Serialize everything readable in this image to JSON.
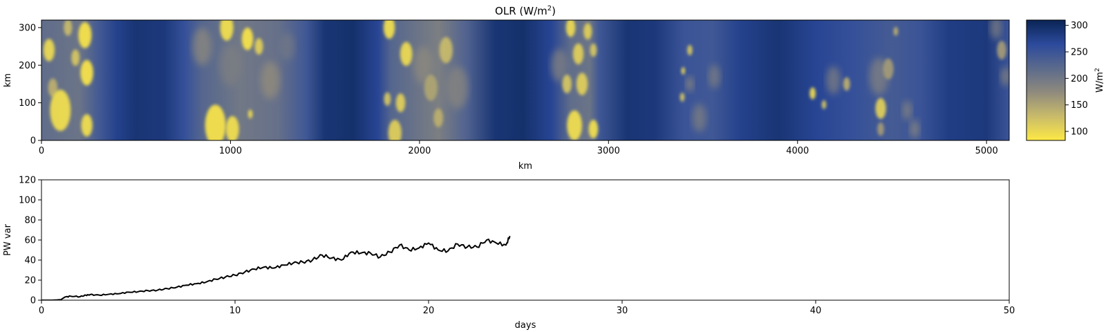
{
  "chart_data": [
    {
      "type": "heatmap",
      "title": "OLR (W/m",
      "title_sup": "2",
      "title_end": ")",
      "xlabel": "km",
      "ylabel": "km",
      "xlim": [
        0,
        5120
      ],
      "ylim": [
        0,
        320
      ],
      "xticks": [
        0,
        1000,
        2000,
        3000,
        4000,
        5000
      ],
      "yticks": [
        0,
        100,
        200,
        300
      ],
      "colorbar": {
        "label": "W/m",
        "label_sup": "2",
        "range": [
          83,
          310
        ],
        "ticks": [
          100,
          150,
          200,
          250,
          300
        ],
        "colors": [
          "#fde945",
          "#c9bb6a",
          "#8f8a7d",
          "#5b6a8c",
          "#2c4a9c",
          "#0a2455"
        ]
      },
      "base_field": [
        {
          "x": 0,
          "v": 215
        },
        {
          "x": 200,
          "v": 205
        },
        {
          "x": 300,
          "v": 240
        },
        {
          "x": 400,
          "v": 275
        },
        {
          "x": 500,
          "v": 290
        },
        {
          "x": 650,
          "v": 285
        },
        {
          "x": 760,
          "v": 255
        },
        {
          "x": 850,
          "v": 225
        },
        {
          "x": 1050,
          "v": 200
        },
        {
          "x": 1250,
          "v": 210
        },
        {
          "x": 1400,
          "v": 245
        },
        {
          "x": 1500,
          "v": 290
        },
        {
          "x": 1650,
          "v": 295
        },
        {
          "x": 1780,
          "v": 270
        },
        {
          "x": 1850,
          "v": 225
        },
        {
          "x": 2100,
          "v": 190
        },
        {
          "x": 2250,
          "v": 230
        },
        {
          "x": 2400,
          "v": 290
        },
        {
          "x": 2550,
          "v": 295
        },
        {
          "x": 2700,
          "v": 270
        },
        {
          "x": 2800,
          "v": 215
        },
        {
          "x": 2900,
          "v": 205
        },
        {
          "x": 2950,
          "v": 245
        },
        {
          "x": 3100,
          "v": 290
        },
        {
          "x": 3250,
          "v": 285
        },
        {
          "x": 3400,
          "v": 250
        },
        {
          "x": 3550,
          "v": 245
        },
        {
          "x": 3700,
          "v": 275
        },
        {
          "x": 3900,
          "v": 290
        },
        {
          "x": 4100,
          "v": 270
        },
        {
          "x": 4300,
          "v": 255
        },
        {
          "x": 4500,
          "v": 240
        },
        {
          "x": 4650,
          "v": 250
        },
        {
          "x": 4800,
          "v": 280
        },
        {
          "x": 5000,
          "v": 285
        },
        {
          "x": 5120,
          "v": 250
        }
      ],
      "cells": [
        {
          "x": 230,
          "y": 280,
          "r": 35,
          "v": 90
        },
        {
          "x": 240,
          "y": 180,
          "r": 34,
          "v": 90
        },
        {
          "x": 40,
          "y": 240,
          "r": 30,
          "v": 100
        },
        {
          "x": 100,
          "y": 80,
          "r": 55,
          "v": 95
        },
        {
          "x": 240,
          "y": 40,
          "r": 30,
          "v": 95
        },
        {
          "x": 180,
          "y": 220,
          "r": 22,
          "v": 120
        },
        {
          "x": 60,
          "y": 140,
          "r": 25,
          "v": 140
        },
        {
          "x": 140,
          "y": 300,
          "r": 22,
          "v": 130
        },
        {
          "x": 980,
          "y": 300,
          "r": 35,
          "v": 95
        },
        {
          "x": 920,
          "y": 40,
          "r": 55,
          "v": 90
        },
        {
          "x": 1010,
          "y": 30,
          "r": 35,
          "v": 95
        },
        {
          "x": 1090,
          "y": 270,
          "r": 30,
          "v": 90
        },
        {
          "x": 1150,
          "y": 250,
          "r": 22,
          "v": 110
        },
        {
          "x": 1105,
          "y": 70,
          "r": 12,
          "v": 100
        },
        {
          "x": 1210,
          "y": 160,
          "r": 40,
          "v": 170
        },
        {
          "x": 1000,
          "y": 200,
          "r": 45,
          "v": 190
        },
        {
          "x": 850,
          "y": 250,
          "r": 40,
          "v": 175
        },
        {
          "x": 1300,
          "y": 250,
          "r": 30,
          "v": 200
        },
        {
          "x": 1840,
          "y": 300,
          "r": 30,
          "v": 95
        },
        {
          "x": 1930,
          "y": 230,
          "r": 32,
          "v": 100
        },
        {
          "x": 1900,
          "y": 100,
          "r": 25,
          "v": 110
        },
        {
          "x": 1830,
          "y": 110,
          "r": 18,
          "v": 120
        },
        {
          "x": 1870,
          "y": 20,
          "r": 35,
          "v": 110
        },
        {
          "x": 2140,
          "y": 240,
          "r": 35,
          "v": 130
        },
        {
          "x": 2060,
          "y": 140,
          "r": 35,
          "v": 150
        },
        {
          "x": 2100,
          "y": 60,
          "r": 25,
          "v": 140
        },
        {
          "x": 2020,
          "y": 200,
          "r": 40,
          "v": 175
        },
        {
          "x": 2200,
          "y": 140,
          "r": 45,
          "v": 180
        },
        {
          "x": 2800,
          "y": 300,
          "r": 25,
          "v": 100
        },
        {
          "x": 2890,
          "y": 290,
          "r": 22,
          "v": 110
        },
        {
          "x": 2840,
          "y": 230,
          "r": 28,
          "v": 110
        },
        {
          "x": 2920,
          "y": 240,
          "r": 18,
          "v": 120
        },
        {
          "x": 2780,
          "y": 150,
          "r": 25,
          "v": 120
        },
        {
          "x": 2860,
          "y": 150,
          "r": 30,
          "v": 110
        },
        {
          "x": 2820,
          "y": 40,
          "r": 40,
          "v": 95
        },
        {
          "x": 2920,
          "y": 30,
          "r": 25,
          "v": 95
        },
        {
          "x": 2740,
          "y": 200,
          "r": 35,
          "v": 185
        },
        {
          "x": 3430,
          "y": 240,
          "r": 14,
          "v": 120
        },
        {
          "x": 3395,
          "y": 185,
          "r": 10,
          "v": 100
        },
        {
          "x": 3390,
          "y": 115,
          "r": 12,
          "v": 120
        },
        {
          "x": 3430,
          "y": 150,
          "r": 16,
          "v": 170
        },
        {
          "x": 3560,
          "y": 170,
          "r": 25,
          "v": 190
        },
        {
          "x": 3480,
          "y": 60,
          "r": 30,
          "v": 190
        },
        {
          "x": 4080,
          "y": 125,
          "r": 16,
          "v": 100
        },
        {
          "x": 4140,
          "y": 95,
          "r": 12,
          "v": 120
        },
        {
          "x": 4260,
          "y": 150,
          "r": 18,
          "v": 140
        },
        {
          "x": 4190,
          "y": 160,
          "r": 30,
          "v": 190
        },
        {
          "x": 4440,
          "y": 85,
          "r": 28,
          "v": 110
        },
        {
          "x": 4480,
          "y": 190,
          "r": 28,
          "v": 160
        },
        {
          "x": 4520,
          "y": 290,
          "r": 12,
          "v": 140
        },
        {
          "x": 4430,
          "y": 170,
          "r": 40,
          "v": 185
        },
        {
          "x": 4580,
          "y": 80,
          "r": 20,
          "v": 180
        },
        {
          "x": 4620,
          "y": 30,
          "r": 20,
          "v": 175
        },
        {
          "x": 4440,
          "y": 30,
          "r": 18,
          "v": 160
        },
        {
          "x": 5080,
          "y": 240,
          "r": 25,
          "v": 160
        },
        {
          "x": 5100,
          "y": 170,
          "r": 20,
          "v": 180
        },
        {
          "x": 5050,
          "y": 300,
          "r": 25,
          "v": 190
        }
      ]
    },
    {
      "type": "line",
      "xlabel": "days",
      "ylabel": "PW var",
      "xlim": [
        0,
        50
      ],
      "ylim": [
        0,
        120
      ],
      "xticks": [
        0,
        10,
        20,
        30,
        40,
        50
      ],
      "yticks": [
        0,
        20,
        40,
        60,
        80,
        100,
        120
      ],
      "color": "#000000",
      "x": [
        0,
        0.5,
        1.0,
        1.2,
        1.5,
        2.0,
        2.3,
        2.5,
        3.0,
        3.5,
        4.0,
        4.5,
        5.0,
        5.5,
        6.0,
        6.5,
        7.0,
        7.5,
        8.0,
        8.5,
        9.0,
        9.5,
        10.0,
        10.5,
        11.0,
        11.5,
        12.0,
        12.5,
        13.0,
        13.5,
        14.0,
        14.5,
        15.0,
        15.5,
        16.0,
        16.5,
        17.0,
        17.5,
        18.0,
        18.5,
        19.0,
        19.5,
        20.0,
        20.5,
        21.0,
        21.5,
        22.0,
        22.5,
        23.0,
        23.5,
        24.0,
        24.2
      ],
      "y": [
        0,
        0,
        0.5,
        3,
        4,
        3.5,
        5,
        5.5,
        5,
        6,
        6.5,
        8,
        8.5,
        9.5,
        10,
        11.5,
        13,
        15,
        16.5,
        18,
        21,
        23,
        25,
        28,
        31,
        33,
        32,
        35,
        37,
        38,
        40,
        45,
        42,
        40,
        48,
        47,
        47,
        43,
        48,
        55,
        50,
        52,
        57,
        50,
        49,
        56,
        53,
        53,
        60,
        57,
        55,
        64
      ]
    }
  ]
}
